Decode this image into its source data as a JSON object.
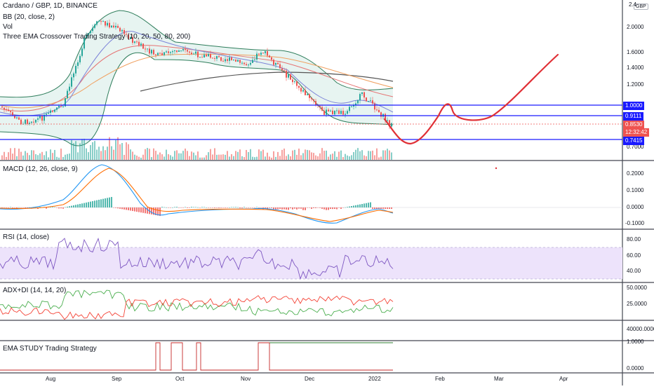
{
  "header": {
    "symbol": "Cardano / GBP, 1D, BINANCE",
    "study_bb": "BB (20, close, 2)",
    "study_vol": "Vol",
    "study_ema": "Three EMA Crossover Trading Strategy (10, 20, 50, 80, 200)"
  },
  "currency_badge": "GBP",
  "colors": {
    "up": "#26a69a",
    "down": "#ef5350",
    "bb": "#2e7d5b",
    "bb_fill": "#e7f4f1",
    "hline": "#1a1aff",
    "forecast": "#e03036",
    "macd": "#2196f3",
    "signal": "#ff6d00",
    "rsi": "#7e57c2",
    "rsi_band": "#ede3fb",
    "adx_plus": "#4caf50",
    "adx_minus": "#f44336",
    "ema200": "#555555",
    "ema_orange": "#f0a060",
    "ema_red": "#e57373"
  },
  "price_axis": {
    "top_partial": "2.4",
    "labels": [
      "2.0000",
      "1.6000",
      "1.4000",
      "1.2000",
      "0.7000"
    ]
  },
  "price_tags": [
    {
      "text": "1.0000",
      "color": "#1a1aff"
    },
    {
      "text": "0.9111",
      "color": "#1a1aff"
    },
    {
      "text": "0.8530",
      "color": "#ef5350"
    },
    {
      "text": "12:32:42",
      "color": "#ef5350"
    },
    {
      "text": "0.7415",
      "color": "#1a1aff"
    }
  ],
  "panes": {
    "macd": {
      "title": "MACD (12, 26, close, 9)",
      "labels": [
        "0.2000",
        "0.1000",
        "0.0000",
        "-0.1000"
      ]
    },
    "rsi": {
      "title": "RSI (14, close)",
      "labels": [
        "80.00",
        "60.00",
        "40.00"
      ]
    },
    "adx": {
      "title": "ADX+DI (14, 14, 20)",
      "labels": [
        "50.0000",
        "25.0000",
        "40000.0000"
      ]
    },
    "ema_study": {
      "title": "EMA STUDY Trading Strategy",
      "labels": [
        "1.0000",
        "0.0000"
      ]
    }
  },
  "date_axis": [
    "Aug",
    "Sep",
    "Oct",
    "Nov",
    "Dec",
    "2022",
    "Feb",
    "Mar",
    "Apr"
  ],
  "chart_data": {
    "type": "line",
    "title": "Cardano / GBP, 1D, BINANCE",
    "price_points": [
      [
        "Jul 8",
        1.05
      ],
      [
        "Jul 18",
        0.88
      ],
      [
        "Jul 25",
        0.92
      ],
      [
        "Aug 1",
        1.0
      ],
      [
        "Aug 10",
        1.3
      ],
      [
        "Aug 17",
        1.75
      ],
      [
        "Aug 25",
        2.05
      ],
      [
        "Sep 1",
        2.05
      ],
      [
        "Sep 8",
        1.8
      ],
      [
        "Sep 15",
        1.75
      ],
      [
        "Sep 22",
        1.62
      ],
      [
        "Oct 1",
        1.6
      ],
      [
        "Oct 10",
        1.6
      ],
      [
        "Oct 20",
        1.55
      ],
      [
        "Nov 1",
        1.45
      ],
      [
        "Nov 10",
        1.6
      ],
      [
        "Nov 20",
        1.4
      ],
      [
        "Dec 1",
        1.1
      ],
      [
        "Dec 10",
        0.95
      ],
      [
        "Dec 20",
        0.92
      ],
      [
        "Jan 1",
        1.1
      ],
      [
        "Jan 8",
        0.95
      ],
      [
        "Jan 15",
        0.853
      ]
    ],
    "horizontal_levels": [
      1.0,
      0.9111,
      0.7415
    ],
    "last_price": 0.853,
    "forecast_path": [
      [
        "Jan 15",
        0.85
      ],
      [
        "Jan 23",
        0.72
      ],
      [
        "Feb 1",
        0.82
      ],
      [
        "Feb 8",
        1.0
      ],
      [
        "Feb 12",
        0.93
      ],
      [
        "Feb 25",
        0.92
      ],
      [
        "Mar 10",
        1.05
      ],
      [
        "Mar 25",
        1.4
      ],
      [
        "Apr 1",
        1.55
      ]
    ],
    "ema200_range": [
      1.25,
      1.35
    ],
    "macd_range": [
      -0.1,
      0.25
    ],
    "rsi_range": [
      35,
      82
    ],
    "adx_range": [
      20,
      50
    ],
    "ema_study_range": [
      0,
      1
    ]
  }
}
